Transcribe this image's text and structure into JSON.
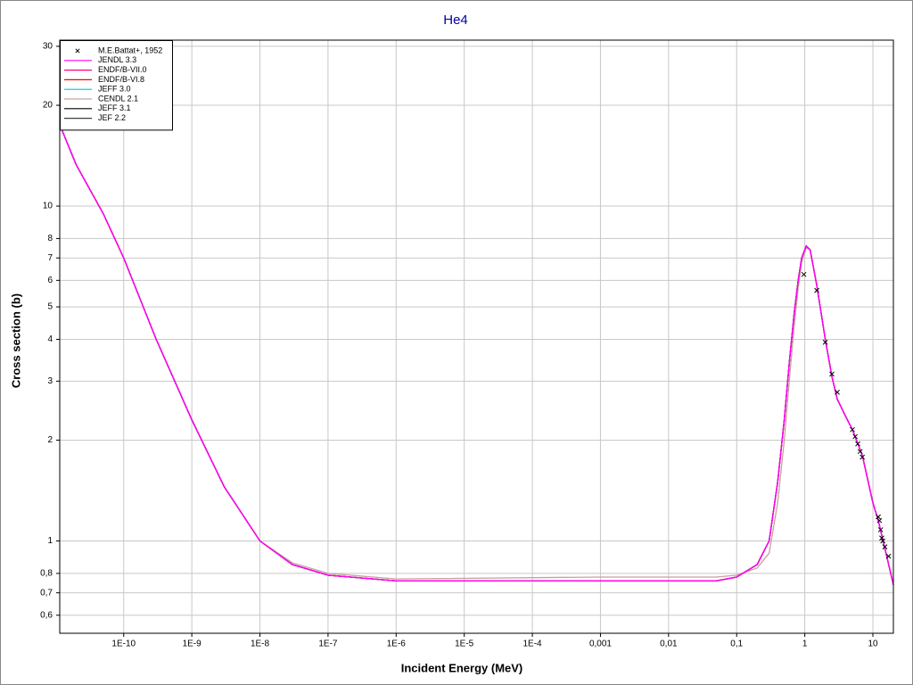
{
  "chart_data": {
    "type": "line",
    "title": "He4",
    "xlabel": "Incident Energy (MeV)",
    "ylabel": "Cross section (b)",
    "xscale": "log",
    "yscale": "log",
    "grid": true,
    "legend": "upper left",
    "xlim": [
      1.15e-11,
      20
    ],
    "ylim": [
      0.53,
      31.3
    ],
    "xticks": [
      {
        "value": 1e-10,
        "label": "1E-10"
      },
      {
        "value": 1e-09,
        "label": "1E-9"
      },
      {
        "value": 1e-08,
        "label": "1E-8"
      },
      {
        "value": 1e-07,
        "label": "1E-7"
      },
      {
        "value": 1e-06,
        "label": "1E-6"
      },
      {
        "value": 1e-05,
        "label": "1E-5"
      },
      {
        "value": 0.0001,
        "label": "1E-4"
      },
      {
        "value": 0.001,
        "label": "0,001"
      },
      {
        "value": 0.01,
        "label": "0,01"
      },
      {
        "value": 0.1,
        "label": "0,1"
      },
      1,
      10
    ],
    "yticks": [
      {
        "value": 0.6,
        "label": "0,6"
      },
      {
        "value": 0.7,
        "label": "0,7"
      },
      {
        "value": 0.8,
        "label": "0,8"
      },
      1,
      2,
      3,
      4,
      5,
      6,
      7,
      8,
      10,
      20,
      30
    ],
    "x": [
      1.15e-11,
      2e-11,
      5e-11,
      1e-10,
      3e-10,
      1e-09,
      3e-09,
      1e-08,
      3e-08,
      1e-07,
      1e-06,
      0.001,
      0.05,
      0.1,
      0.2,
      0.3,
      0.4,
      0.5,
      0.6,
      0.7,
      0.8,
      0.9,
      1.05,
      1.2,
      1.5,
      2,
      2.5,
      3,
      4,
      5,
      7,
      10,
      12,
      15,
      20
    ],
    "series": [
      {
        "name": "M.E.Battat+, 1952",
        "type": "scatter",
        "color": "#000000",
        "x": [
          0.97,
          1.5,
          2.0,
          2.5,
          3.0,
          5.0,
          5.5,
          6.0,
          6.5,
          7.0,
          12,
          12.5,
          13,
          13.5,
          14,
          15,
          17
        ],
        "values": [
          6.25,
          5.6,
          3.92,
          3.15,
          2.78,
          2.15,
          2.05,
          1.95,
          1.85,
          1.78,
          1.18,
          1.15,
          1.08,
          1.02,
          1.0,
          0.96,
          0.9
        ]
      },
      {
        "name": "JENDL 3.3",
        "color": "#ff00ff",
        "values": [
          17.5,
          13.3,
          9.5,
          7.0,
          4.0,
          2.3,
          1.45,
          1.0,
          0.85,
          0.79,
          0.76,
          0.76,
          0.76,
          0.78,
          0.85,
          1.0,
          1.5,
          2.3,
          3.5,
          4.8,
          6.0,
          7.0,
          7.6,
          7.4,
          5.8,
          4.0,
          3.1,
          2.65,
          2.35,
          2.15,
          1.8,
          1.3,
          1.15,
          0.95,
          0.74
        ]
      },
      {
        "name": "ENDF/B-VII.0",
        "color": "#ff0080",
        "values": [
          17.5,
          13.3,
          9.5,
          7.0,
          4.0,
          2.3,
          1.45,
          1.0,
          0.85,
          0.79,
          0.76,
          0.76,
          0.76,
          0.78,
          0.85,
          1.0,
          1.5,
          2.3,
          3.5,
          4.8,
          6.0,
          7.0,
          7.6,
          7.4,
          5.8,
          4.0,
          3.1,
          2.65,
          2.35,
          2.15,
          1.8,
          1.3,
          1.15,
          0.95,
          0.74
        ]
      },
      {
        "name": "ENDF/B-VI.8",
        "color": "#ff0000",
        "values": [
          17.5,
          13.3,
          9.5,
          7.0,
          4.0,
          2.3,
          1.45,
          1.0,
          0.85,
          0.79,
          0.76,
          0.76,
          0.76,
          0.78,
          0.85,
          1.0,
          1.5,
          2.3,
          3.5,
          4.8,
          6.0,
          7.0,
          7.6,
          7.4,
          5.8,
          4.0,
          3.1,
          2.65,
          2.35,
          2.15,
          1.8,
          1.3,
          1.15,
          0.95,
          0.74
        ]
      },
      {
        "name": "JEFF 3.0",
        "color": "#00c8c8",
        "values": [
          17.5,
          13.3,
          9.5,
          7.0,
          4.0,
          2.3,
          1.45,
          1.0,
          0.85,
          0.79,
          0.76,
          0.76,
          0.76,
          0.78,
          0.85,
          1.0,
          1.5,
          2.3,
          3.5,
          4.8,
          6.0,
          7.0,
          7.6,
          7.4,
          5.8,
          4.0,
          3.1,
          2.65,
          2.35,
          2.15,
          1.8,
          1.3,
          1.15,
          0.95,
          0.74
        ]
      },
      {
        "name": "CENDL 2.1",
        "color": "#c8a0a0",
        "values": [
          17.5,
          13.3,
          9.5,
          7.0,
          4.0,
          2.3,
          1.45,
          1.0,
          0.86,
          0.8,
          0.77,
          0.78,
          0.78,
          0.79,
          0.83,
          0.92,
          1.3,
          2.0,
          3.1,
          4.4,
          5.7,
          6.8,
          7.5,
          7.4,
          5.8,
          4.0,
          3.1,
          2.65,
          2.35,
          2.15,
          1.8,
          1.3,
          1.15,
          0.95,
          0.74
        ]
      },
      {
        "name": "JEFF 3.1",
        "color": "#000000",
        "values": [
          17.5,
          13.3,
          9.5,
          7.0,
          4.0,
          2.3,
          1.45,
          1.0,
          0.85,
          0.79,
          0.76,
          0.76,
          0.76,
          0.78,
          0.85,
          1.0,
          1.5,
          2.3,
          3.5,
          4.8,
          6.0,
          7.0,
          7.6,
          7.4,
          5.8,
          4.0,
          3.1,
          2.65,
          2.35,
          2.15,
          1.8,
          1.3,
          1.15,
          0.95,
          0.74
        ]
      },
      {
        "name": "JEF 2.2",
        "color": "#404040",
        "values": [
          17.5,
          13.3,
          9.5,
          7.0,
          4.0,
          2.3,
          1.45,
          1.0,
          0.85,
          0.79,
          0.76,
          0.76,
          0.76,
          0.78,
          0.85,
          1.0,
          1.5,
          2.3,
          3.5,
          4.8,
          6.0,
          7.0,
          7.6,
          7.4,
          5.8,
          4.0,
          3.1,
          2.65,
          2.35,
          2.15,
          1.8,
          1.3,
          1.15,
          0.95,
          0.74
        ]
      }
    ]
  }
}
